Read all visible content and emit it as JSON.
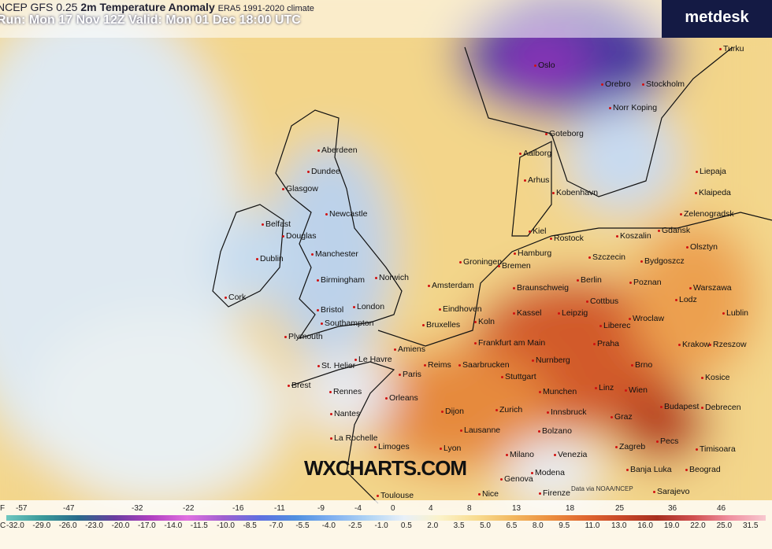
{
  "header": {
    "model": "NCEP GFS 0.25",
    "product": "2m Temperature Anomaly",
    "climate": "ERA5 1991-2020 climate",
    "run": "Run: Mon 17 Nov 12Z Valid: Mon 01 Dec 18:00 UTC"
  },
  "brand": "metdesk",
  "watermark": "WXCHARTS.COM",
  "credit": "Data via NOAA/NCEP",
  "map": {
    "cities": [
      "Oslo",
      "Orebro",
      "Stockholm",
      "Turku",
      "Norr Koping",
      "Goteborg",
      "Aalborg",
      "Arhus",
      "Kobenhavn",
      "Liepaja",
      "Klaipeda",
      "Zelenogradsk",
      "Kiel",
      "Rostock",
      "Koszalin",
      "Gdansk",
      "Olsztyn",
      "Szczecin",
      "Bydgoszcz",
      "Hamburg",
      "Bremen",
      "Groningen",
      "Amsterdam",
      "Braunschweig",
      "Berlin",
      "Poznan",
      "Warszawa",
      "Lodz",
      "Lublin",
      "Cottbus",
      "Wroclaw",
      "Liberec",
      "Eindhoven",
      "Kassel",
      "Leipzig",
      "Bruxelles",
      "Koln",
      "Praha",
      "Krakow",
      "Rzeszow",
      "Frankfurt am Main",
      "Amiens",
      "Nurnberg",
      "Brno",
      "Le Havre",
      "Reims",
      "Saarbrucken",
      "Paris",
      "Stuttgart",
      "Kosice",
      "Linz",
      "Wien",
      "Munchen",
      "Orleans",
      "Dijon",
      "Zurich",
      "Innsbruck",
      "Budapest",
      "Debrecen",
      "Graz",
      "Lausanne",
      "Bolzano",
      "Zagreb",
      "Pecs",
      "Timisoara",
      "La Rochelle",
      "Limoges",
      "Lyon",
      "Milano",
      "Venezia",
      "Banja Luka",
      "Beograd",
      "Genova",
      "Modena",
      "Firenze",
      "Sarajevo",
      "Toulouse",
      "Nice",
      "Aberdeen",
      "Dundee",
      "Glasgow",
      "Newcastle",
      "Belfast",
      "Douglas",
      "Dublin",
      "Manchester",
      "Birmingham",
      "Norwich",
      "Cork",
      "Bristol",
      "London",
      "Southampton",
      "Plymouth",
      "St. Helier",
      "Brest",
      "Rennes",
      "Nantes"
    ]
  },
  "legend": {
    "f_unit": "F",
    "f_ticks": [
      "-57",
      "-47",
      "-32",
      "-22",
      "-16",
      "-11",
      "-9",
      "-4",
      "0",
      "4",
      "8",
      "13",
      "18",
      "25",
      "36",
      "46"
    ],
    "c_unit": "C",
    "c_ticks": [
      "-32.0",
      "-29.0",
      "-26.0",
      "-23.0",
      "-20.0",
      "-17.0",
      "-14.0",
      "-11.5",
      "-10.0",
      "-8.5",
      "-7.0",
      "-5.5",
      "-4.0",
      "-2.5",
      "-1.0",
      "0.5",
      "2.0",
      "3.5",
      "5.0",
      "6.5",
      "8.0",
      "9.5",
      "11.0",
      "13.0",
      "16.0",
      "19.0",
      "22.0",
      "25.0",
      "31.5"
    ]
  }
}
